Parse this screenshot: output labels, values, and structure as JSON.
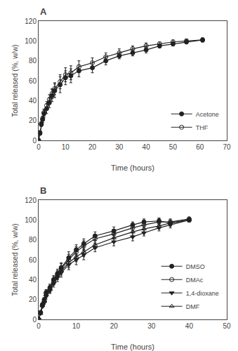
{
  "chart_data": [
    {
      "type": "line",
      "title": "A",
      "xlabel": "Time (hours)",
      "ylabel": "Total released (%, w/w)",
      "xlim": [
        0,
        70
      ],
      "ylim": [
        0,
        120
      ],
      "xticks": [
        0,
        10,
        20,
        30,
        40,
        50,
        60,
        70
      ],
      "yticks": [
        0,
        20,
        40,
        60,
        80,
        100,
        120
      ],
      "grid": false,
      "legend": "lower right",
      "x": [
        0,
        0.5,
        1,
        1.5,
        2,
        3,
        4,
        5,
        6,
        8,
        10,
        12,
        15,
        20,
        25,
        30,
        35,
        40,
        45,
        50,
        55,
        61
      ],
      "series": [
        {
          "name": "Acetone",
          "color": "#222222",
          "marker": "circle",
          "values": [
            0,
            7,
            16,
            21,
            27,
            32,
            38,
            45,
            50,
            56,
            63,
            65,
            70,
            73,
            80,
            85,
            88,
            91,
            95,
            97,
            99,
            101
          ],
          "yerr": [
            0,
            1.5,
            2,
            3,
            4,
            5,
            5,
            6,
            7,
            8,
            7,
            7,
            6,
            5,
            4,
            3,
            3,
            3,
            2,
            2,
            2,
            2
          ]
        },
        {
          "name": "THF",
          "color": "#222222",
          "marker": "circle-open",
          "values": [
            0,
            8,
            17,
            22,
            28,
            35,
            41,
            47,
            52,
            59,
            66,
            68,
            74,
            78,
            84,
            88,
            92,
            95,
            97,
            99,
            100,
            101
          ],
          "yerr": [
            0,
            1.5,
            2,
            2.5,
            3.5,
            4,
            5,
            5,
            6,
            7,
            7,
            7,
            6,
            5,
            4,
            4,
            3,
            3,
            2,
            2,
            2,
            2
          ]
        }
      ]
    },
    {
      "type": "line",
      "title": "B",
      "xlabel": "Time (hours)",
      "ylabel": "Total released (%, w/w)",
      "xlim": [
        0,
        50
      ],
      "ylim": [
        0,
        120
      ],
      "xticks": [
        0,
        10,
        20,
        30,
        40,
        50
      ],
      "yticks": [
        0,
        20,
        40,
        60,
        80,
        100,
        120
      ],
      "grid": false,
      "legend": "lower right",
      "x": [
        0,
        0.5,
        1,
        1.5,
        2,
        3,
        4,
        5,
        6,
        8,
        10,
        12,
        15,
        20,
        25,
        28,
        32,
        35,
        40
      ],
      "series": [
        {
          "name": "DMSO",
          "color": "#222222",
          "marker": "circle",
          "values": [
            0,
            7,
            15,
            20,
            27,
            32,
            40,
            46,
            52,
            62,
            70,
            76,
            84,
            89,
            95,
            98,
            99,
            97,
            100
          ],
          "yerr": [
            0,
            1,
            1.5,
            2,
            3,
            3.5,
            4,
            4.5,
            5,
            6,
            5,
            5,
            4,
            4,
            3,
            3,
            3,
            3,
            2
          ]
        },
        {
          "name": "DMAc",
          "color": "#222222",
          "marker": "circle-open",
          "values": [
            0,
            7,
            14,
            19,
            26,
            31,
            39,
            45,
            51,
            60,
            68,
            74,
            81,
            86,
            92,
            95,
            98,
            98,
            101
          ],
          "yerr": [
            0,
            1,
            1.5,
            2,
            3,
            3.5,
            4,
            4,
            5,
            5.5,
            5,
            5,
            4,
            4,
            3,
            3,
            3,
            3,
            2
          ]
        },
        {
          "name": "1,4-dioxane",
          "color": "#222222",
          "marker": "triangle-down",
          "values": [
            0,
            6,
            13,
            17,
            23,
            29,
            36,
            42,
            47,
            55,
            60,
            65,
            72,
            78,
            83,
            87,
            92,
            95,
            100
          ],
          "yerr": [
            0,
            1,
            1.5,
            2,
            2.5,
            3,
            3.5,
            4,
            4.5,
            5,
            5,
            5,
            4,
            4,
            4,
            3,
            3,
            3,
            2
          ]
        },
        {
          "name": "DMF",
          "color": "#222222",
          "marker": "triangle-up-open",
          "values": [
            0,
            6,
            14,
            18,
            25,
            30,
            38,
            44,
            49,
            57,
            63,
            68,
            75,
            82,
            88,
            91,
            94,
            97,
            100
          ],
          "yerr": [
            0,
            1,
            1.5,
            2,
            2.5,
            3,
            3.5,
            4,
            4.5,
            5,
            5,
            5,
            4,
            4,
            4,
            3,
            3,
            3,
            2
          ]
        }
      ]
    }
  ]
}
